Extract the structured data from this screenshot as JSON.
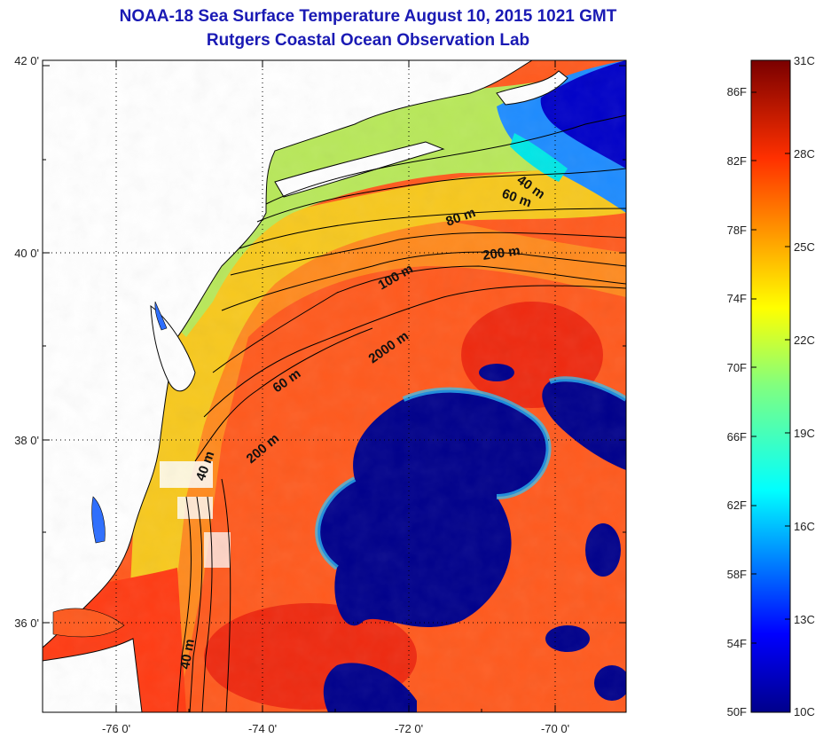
{
  "title": {
    "line1": "NOAA-18 Sea Surface Temperature August 10, 2015 1021 GMT",
    "line2": "Rutgers Coastal Ocean Observation Lab"
  },
  "map": {
    "lat_labels": [
      "42 0'",
      "40 0'",
      "38 0'",
      "36 0'"
    ],
    "lon_labels": [
      "-76 0'",
      "-74 0'",
      "-72 0'",
      "-70 0'"
    ],
    "lat_range": [
      35,
      42
    ],
    "lon_range": [
      -77,
      -69
    ],
    "contour_labels": [
      "40 m",
      "60 m",
      "80 m",
      "200 m",
      "100 m",
      "2000 m",
      "60 m",
      "200 m",
      "40 m",
      "40 m"
    ],
    "colors": {
      "land": "#ffffff",
      "cold": "#00008b",
      "warm_ocean": "#ff5a1e",
      "shelf": "#f7c81e",
      "coastal": "#b8e85a",
      "frame": "#000000"
    }
  },
  "colorbar": {
    "fahrenheit_labels": [
      "86F",
      "82F",
      "78F",
      "74F",
      "70F",
      "66F",
      "62F",
      "58F",
      "54F",
      "50F"
    ],
    "celsius_labels": [
      "31C",
      "28C",
      "25C",
      "22C",
      "19C",
      "16C",
      "13C",
      "10C"
    ],
    "range_c": [
      10,
      31
    ],
    "colormap": "jet"
  }
}
